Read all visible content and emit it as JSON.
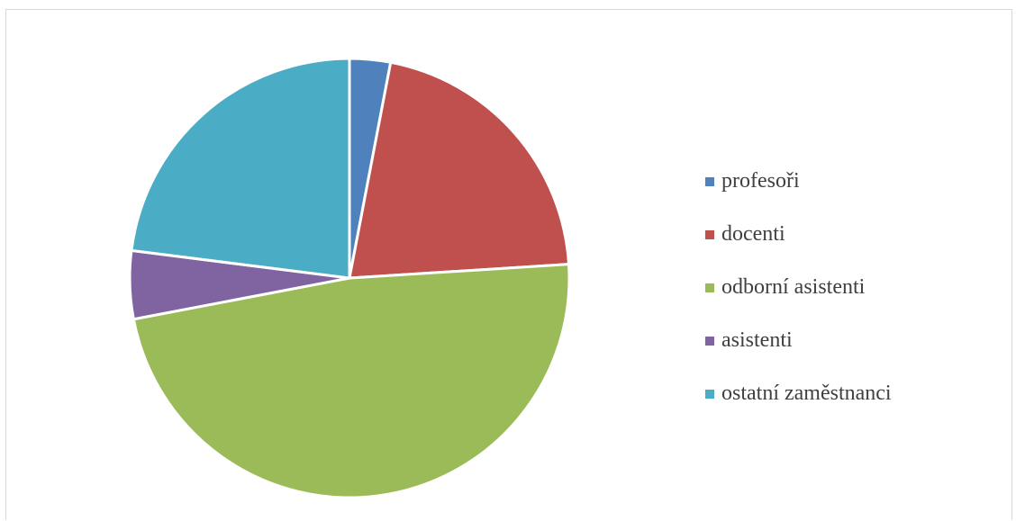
{
  "chart_data": {
    "type": "pie",
    "title": "",
    "categories": [
      "profesoři",
      "docenti",
      "odborní asistenti",
      "asistenti",
      "ostatní zaměstnanci"
    ],
    "values": [
      3,
      21,
      48,
      5,
      23
    ],
    "unit": "%",
    "colors": [
      "#4f81bd",
      "#c0504d",
      "#9bbb59",
      "#8064a2",
      "#4bacc6"
    ],
    "start_angle_deg": 0,
    "direction": "clockwise",
    "legend_position": "right",
    "data_labels": false
  }
}
